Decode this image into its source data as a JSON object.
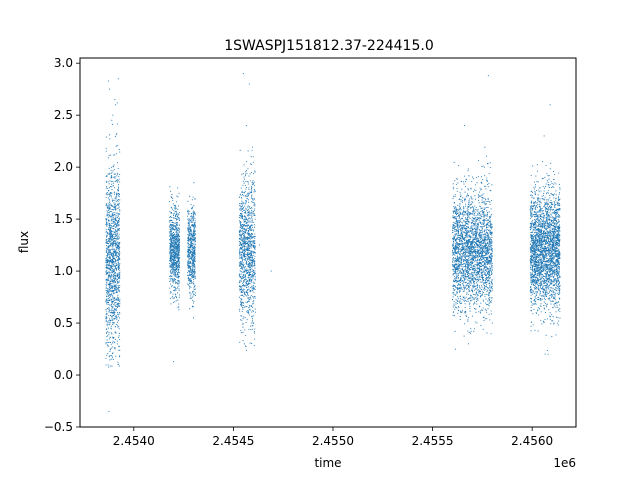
{
  "chart_data": {
    "type": "scatter",
    "title": "1SWASPJ151812.37-224415.0",
    "xlabel": "time",
    "ylabel": "flux",
    "x_offset_label": "1e6",
    "xlim": [
      2453730,
      2456220
    ],
    "ylim": [
      -0.5,
      3.05
    ],
    "x_ticks": [
      2.454,
      2.4545,
      2.455,
      2.4555,
      2.456
    ],
    "x_tick_labels": [
      "2.4540",
      "2.4545",
      "2.4550",
      "2.4555",
      "2.4560"
    ],
    "y_ticks": [
      -0.5,
      0.0,
      0.5,
      1.0,
      1.5,
      2.0,
      2.5,
      3.0
    ],
    "y_tick_labels": [
      "−0.5",
      "0.0",
      "0.5",
      "1.0",
      "1.5",
      "2.0",
      "2.5",
      "3.0"
    ],
    "grid": false,
    "marker_color": "#1f77b4",
    "series": [
      {
        "points": [
          [
            2453860,
            0.3
          ],
          [
            2453865,
            0.55
          ],
          [
            2453870,
            1.05
          ],
          [
            2453872,
            1.4
          ],
          [
            2453875,
            0.8
          ],
          [
            2453878,
            2.75
          ],
          [
            2453880,
            1.6
          ],
          [
            2453882,
            0.25
          ],
          [
            2453885,
            1.1
          ],
          [
            2453888,
            1.9
          ],
          [
            2453890,
            0.7
          ],
          [
            2453893,
            1.3
          ],
          [
            2453895,
            2.5
          ],
          [
            2453897,
            0.15
          ],
          [
            2453900,
            1.0
          ],
          [
            2453905,
            2.65
          ],
          [
            2453908,
            1.45
          ],
          [
            2453910,
            0.95
          ],
          [
            2453912,
            2.2
          ],
          [
            2453915,
            1.75
          ],
          [
            2453918,
            0.6
          ],
          [
            2453920,
            1.25
          ],
          [
            2453922,
            2.85
          ],
          [
            2453925,
            1.55
          ],
          [
            2453928,
            0.4
          ],
          [
            2453875,
            -0.35
          ],
          [
            2454180,
            1.1
          ],
          [
            2454185,
            1.45
          ],
          [
            2454190,
            0.85
          ],
          [
            2454195,
            1.7
          ],
          [
            2454200,
            1.2
          ],
          [
            2454205,
            1.0
          ],
          [
            2454210,
            1.6
          ],
          [
            2454215,
            0.75
          ],
          [
            2454218,
            1.35
          ],
          [
            2454220,
            1.8
          ],
          [
            2454225,
            0.95
          ],
          [
            2454228,
            1.5
          ],
          [
            2454200,
            0.13
          ],
          [
            2454280,
            1.2
          ],
          [
            2454285,
            0.9
          ],
          [
            2454290,
            1.6
          ],
          [
            2454295,
            1.3
          ],
          [
            2454300,
            0.55
          ],
          [
            2454302,
            1.85
          ],
          [
            2454305,
            1.05
          ],
          [
            2454530,
            1.2
          ],
          [
            2454540,
            0.7
          ],
          [
            2454545,
            1.6
          ],
          [
            2454550,
            2.9
          ],
          [
            2454555,
            0.3
          ],
          [
            2454560,
            1.4
          ],
          [
            2454565,
            2.4
          ],
          [
            2454570,
            0.9
          ],
          [
            2454575,
            1.75
          ],
          [
            2454580,
            2.8
          ],
          [
            2454585,
            1.1
          ],
          [
            2454590,
            0.5
          ],
          [
            2454595,
            1.5
          ],
          [
            2454600,
            2.1
          ],
          [
            2454610,
            0.85
          ],
          [
            2454630,
            1.25
          ],
          [
            2454690,
            1.0
          ],
          [
            2455600,
            1.2
          ],
          [
            2455620,
            0.8
          ],
          [
            2455640,
            1.6
          ],
          [
            2455660,
            2.4
          ],
          [
            2455680,
            0.3
          ],
          [
            2455700,
            1.4
          ],
          [
            2455720,
            1.9
          ],
          [
            2455740,
            0.6
          ],
          [
            2455760,
            2.0
          ],
          [
            2455780,
            1.0
          ],
          [
            2455800,
            0.5
          ],
          [
            2455780,
            2.88
          ],
          [
            2456000,
            1.3
          ],
          [
            2456020,
            0.6
          ],
          [
            2456040,
            1.8
          ],
          [
            2456060,
            2.3
          ],
          [
            2456080,
            0.2
          ],
          [
            2456090,
            2.6
          ],
          [
            2456100,
            1.4
          ],
          [
            2456110,
            0.5
          ],
          [
            2456120,
            1.7
          ],
          [
            2456130,
            1.0
          ]
        ]
      }
    ],
    "clusters": [
      {
        "x_min": 2453860,
        "x_max": 2453930,
        "y_mean": 1.15,
        "y_sd": 0.45,
        "y_low": 0.05,
        "y_high": 2.9,
        "count": 1300
      },
      {
        "x_min": 2454180,
        "x_max": 2454230,
        "y_mean": 1.2,
        "y_sd": 0.2,
        "y_low": 0.6,
        "y_high": 1.85,
        "count": 800
      },
      {
        "x_min": 2454270,
        "x_max": 2454310,
        "y_mean": 1.2,
        "y_sd": 0.2,
        "y_low": 0.45,
        "y_high": 2.1,
        "count": 600
      },
      {
        "x_min": 2454530,
        "x_max": 2454610,
        "y_mean": 1.2,
        "y_sd": 0.35,
        "y_low": 0.2,
        "y_high": 2.9,
        "count": 1100
      },
      {
        "x_min": 2455600,
        "x_max": 2455800,
        "y_mean": 1.2,
        "y_sd": 0.28,
        "y_low": 0.2,
        "y_high": 2.6,
        "count": 2600
      },
      {
        "x_min": 2455990,
        "x_max": 2456140,
        "y_mean": 1.2,
        "y_sd": 0.28,
        "y_low": 0.2,
        "y_high": 2.6,
        "count": 2600
      }
    ]
  }
}
